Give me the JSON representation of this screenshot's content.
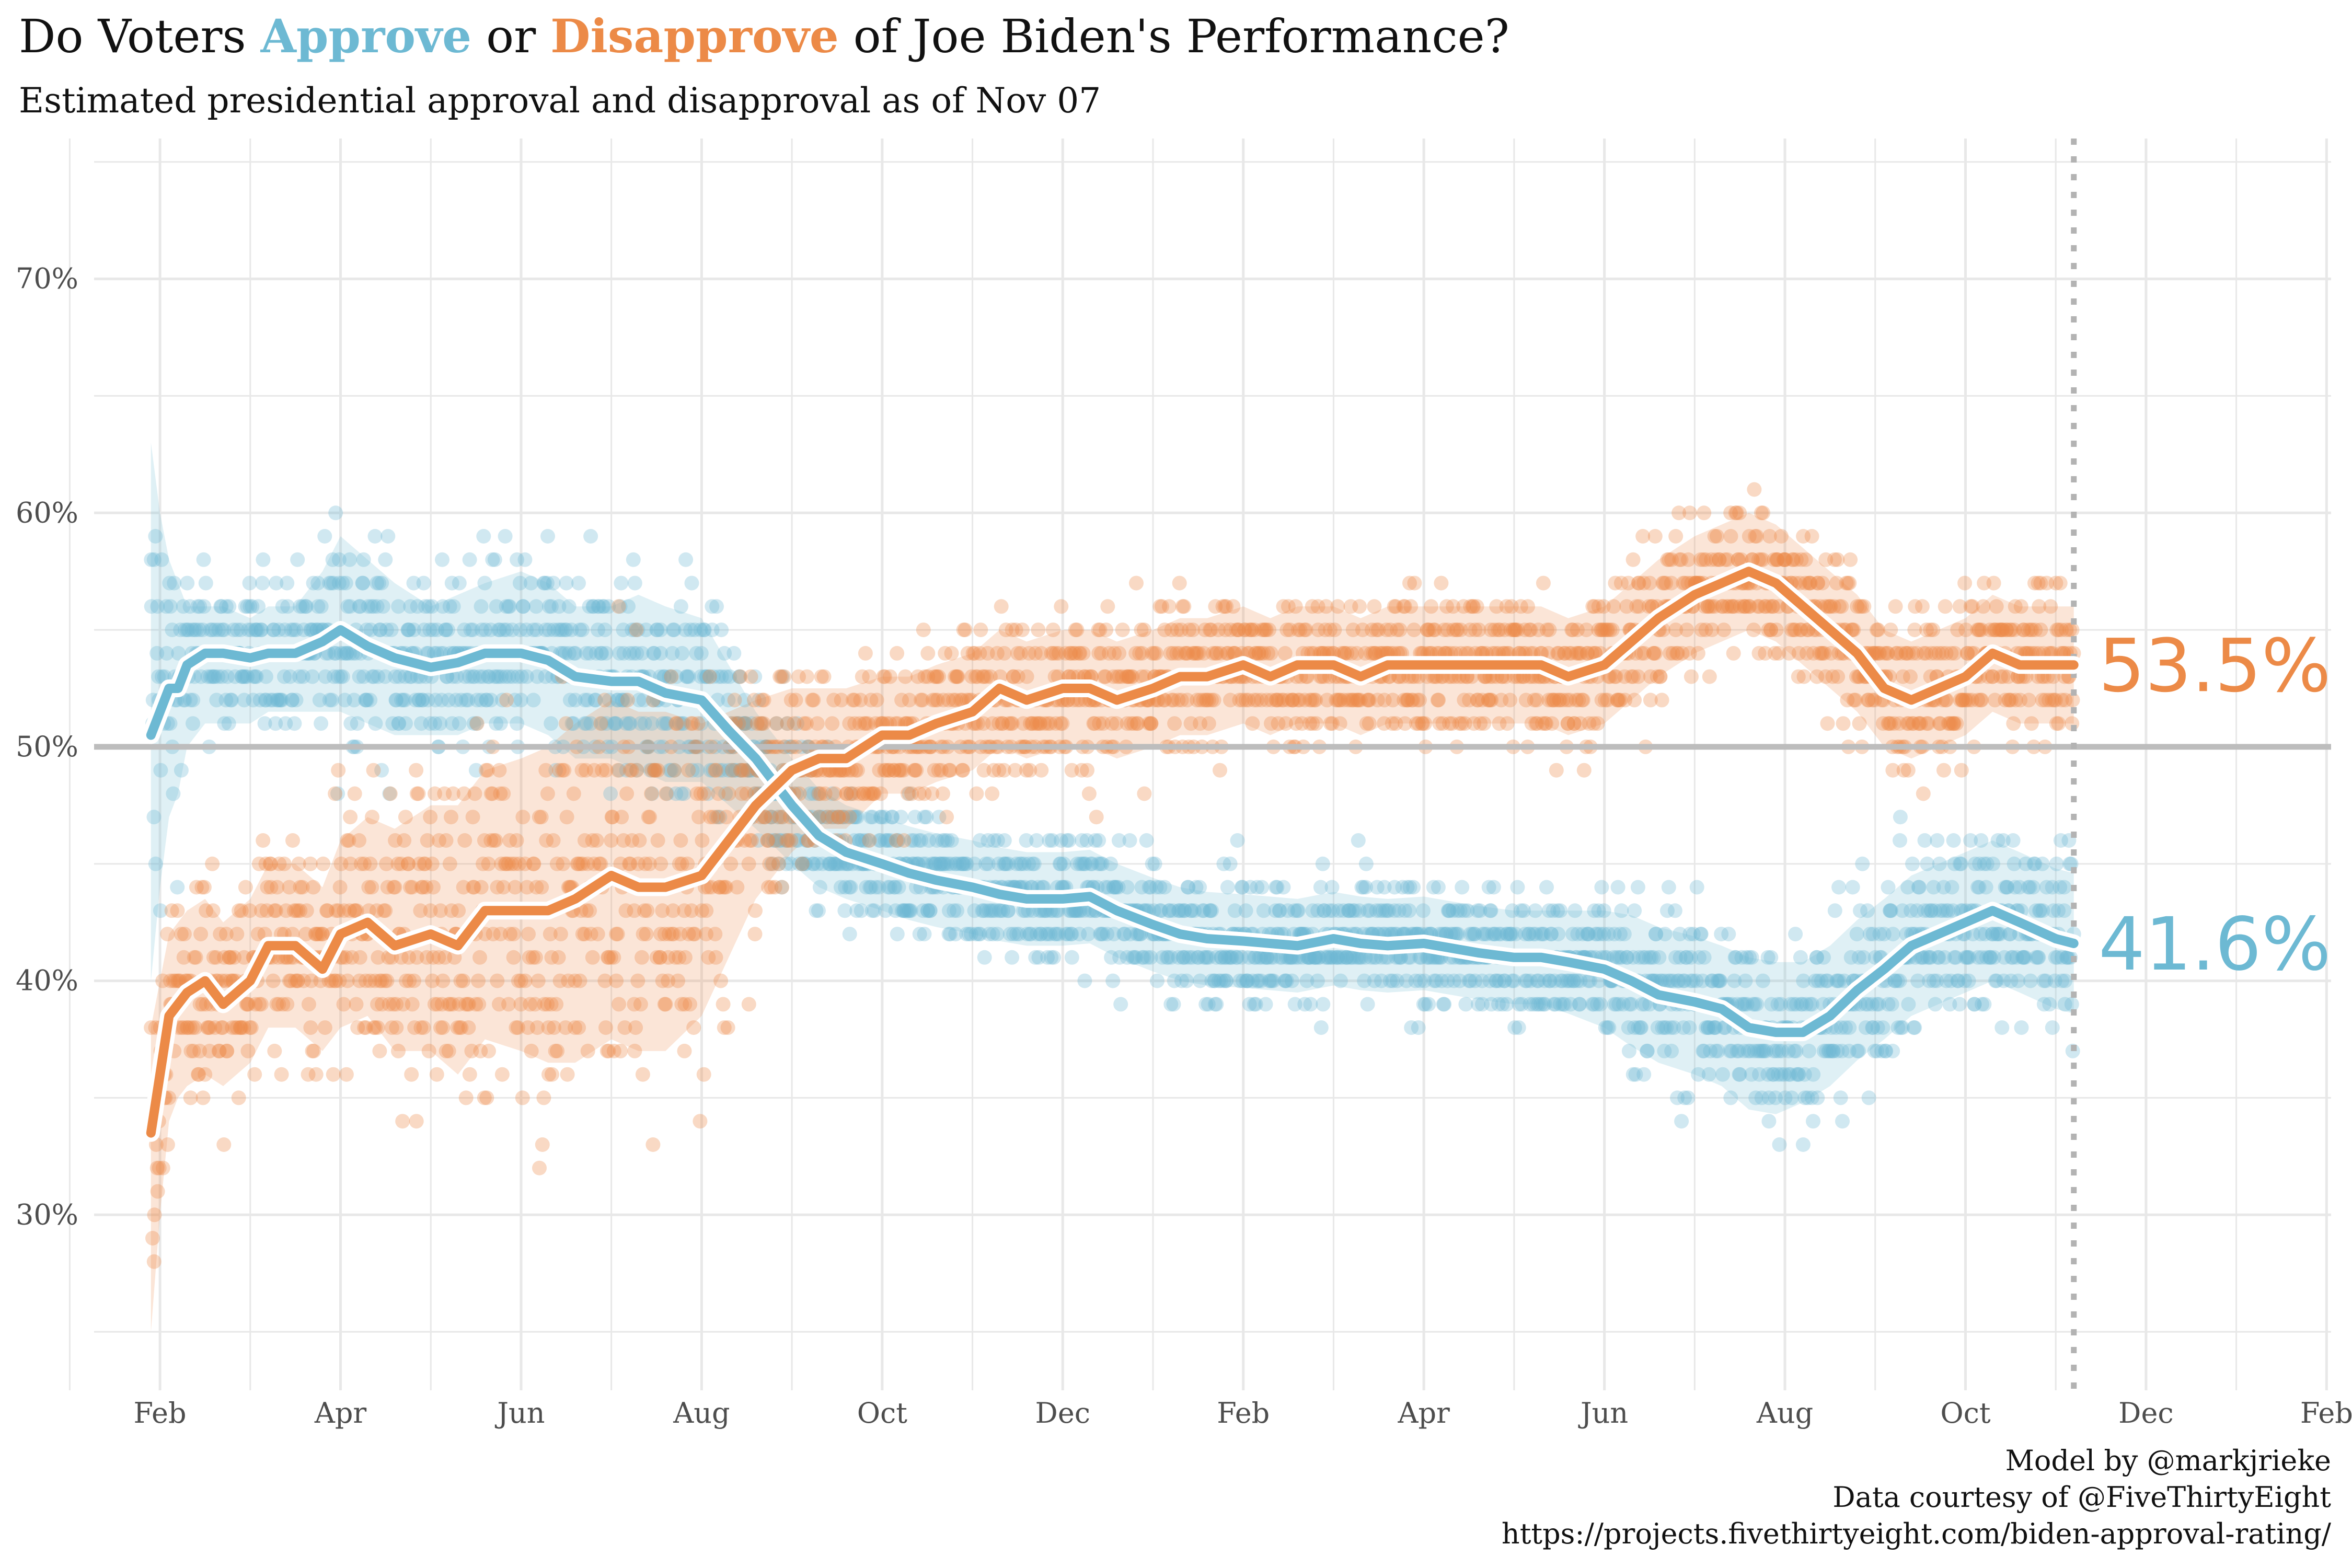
{
  "title": {
    "prefix": "Do Voters ",
    "approve_word": "Approve",
    "middle": " or ",
    "disapprove_word": "Disapprove",
    "suffix": " of Joe Biden's Performance?"
  },
  "subtitle": "Estimated presidential approval and disapproval as of Nov 07",
  "caption": [
    "Model by @markjrieke",
    "Data courtesy of @FiveThirtyEight",
    "https://projects.fivethirtyeight.com/biden-approval-rating/"
  ],
  "colors": {
    "approve": "#6db9d3",
    "disapprove": "#ec8a47",
    "reference": "#bdbdbd",
    "grid": "#e8e8e8"
  },
  "chart_data": {
    "type": "line",
    "x_unit": "months since Jan 2021",
    "xlim": [
      0.27,
      25.05
    ],
    "ylim": [
      22.5,
      76
    ],
    "x_ticks": [
      {
        "x": 1,
        "label": "Feb"
      },
      {
        "x": 3,
        "label": "Apr"
      },
      {
        "x": 5,
        "label": "Jun"
      },
      {
        "x": 7,
        "label": "Aug"
      },
      {
        "x": 9,
        "label": "Oct"
      },
      {
        "x": 11,
        "label": "Dec"
      },
      {
        "x": 13,
        "label": "Feb"
      },
      {
        "x": 15,
        "label": "Apr"
      },
      {
        "x": 17,
        "label": "Jun"
      },
      {
        "x": 19,
        "label": "Aug"
      },
      {
        "x": 21,
        "label": "Oct"
      },
      {
        "x": 23,
        "label": "Dec"
      },
      {
        "x": 25,
        "label": "Feb"
      }
    ],
    "y_ticks": [
      {
        "y": 30,
        "label": "30%"
      },
      {
        "y": 40,
        "label": "40%"
      },
      {
        "y": 50,
        "label": "50%"
      },
      {
        "y": 60,
        "label": "60%"
      },
      {
        "y": 70,
        "label": "70%"
      }
    ],
    "reference_line": 50,
    "current_date_x": 22.2,
    "series": [
      {
        "name": "Approve",
        "end_label": "41.6%",
        "x": [
          0.9,
          1.0,
          1.1,
          1.2,
          1.3,
          1.5,
          1.7,
          2.0,
          2.2,
          2.5,
          2.8,
          3.0,
          3.3,
          3.6,
          4.0,
          4.3,
          4.6,
          5.0,
          5.3,
          5.6,
          6.0,
          6.3,
          6.6,
          7.0,
          7.3,
          7.6,
          8.0,
          8.3,
          8.6,
          9.0,
          9.3,
          9.6,
          10.0,
          10.3,
          10.6,
          11.0,
          11.3,
          11.6,
          12.0,
          12.3,
          12.6,
          13.0,
          13.3,
          13.6,
          14.0,
          14.3,
          14.6,
          15.0,
          15.3,
          15.6,
          16.0,
          16.3,
          16.6,
          17.0,
          17.3,
          17.6,
          18.0,
          18.3,
          18.6,
          18.9,
          19.2,
          19.5,
          19.8,
          20.1,
          20.4,
          20.7,
          21.0,
          21.3,
          21.6,
          22.0,
          22.2
        ],
        "values": [
          50.5,
          51.5,
          52.5,
          52.5,
          53.5,
          54.0,
          54.0,
          53.8,
          54.0,
          54.0,
          54.5,
          55.0,
          54.3,
          53.8,
          53.4,
          53.6,
          54.0,
          54.0,
          53.7,
          53.0,
          52.8,
          52.8,
          52.3,
          52.0,
          50.7,
          49.5,
          47.5,
          46.2,
          45.5,
          45.0,
          44.6,
          44.3,
          44.0,
          43.7,
          43.5,
          43.5,
          43.6,
          43.0,
          42.4,
          42.0,
          41.8,
          41.7,
          41.6,
          41.5,
          41.8,
          41.6,
          41.5,
          41.6,
          41.4,
          41.2,
          41.0,
          41.0,
          40.8,
          40.5,
          40.0,
          39.4,
          39.1,
          38.8,
          38.0,
          37.8,
          37.8,
          38.5,
          39.6,
          40.5,
          41.5,
          42.0,
          42.5,
          43.0,
          42.5,
          41.8,
          41.6
        ],
        "band_upper": [
          63.0,
          60.0,
          58.0,
          57.0,
          56.0,
          56.0,
          56.0,
          55.5,
          56.0,
          56.0,
          57.5,
          59.0,
          58.0,
          57.0,
          56.0,
          56.5,
          57.0,
          57.5,
          57.0,
          56.0,
          56.0,
          56.5,
          56.0,
          55.5,
          53.5,
          51.5,
          49.5,
          48.2,
          47.5,
          47.0,
          46.6,
          46.3,
          46.0,
          45.7,
          45.5,
          45.5,
          45.6,
          45.0,
          44.4,
          44.0,
          43.8,
          43.7,
          43.6,
          43.5,
          43.8,
          43.6,
          43.5,
          43.6,
          43.4,
          43.2,
          43.0,
          43.0,
          43.0,
          43.0,
          42.8,
          42.3,
          41.9,
          41.5,
          41.0,
          40.8,
          40.8,
          41.5,
          42.6,
          43.5,
          44.5,
          45.0,
          45.5,
          46.0,
          45.5,
          44.8,
          44.6
        ],
        "band_lower": [
          40.0,
          44.0,
          47.0,
          48.0,
          50.0,
          51.0,
          51.0,
          51.0,
          51.5,
          51.5,
          51.5,
          51.5,
          51.0,
          50.5,
          50.5,
          50.5,
          51.0,
          51.0,
          50.5,
          49.5,
          49.5,
          49.0,
          48.5,
          48.5,
          47.5,
          46.5,
          45.0,
          44.0,
          43.5,
          43.0,
          42.6,
          42.3,
          42.0,
          41.7,
          41.5,
          41.5,
          41.6,
          41.0,
          40.4,
          40.0,
          39.8,
          39.7,
          39.6,
          39.5,
          39.8,
          39.6,
          39.5,
          39.6,
          39.4,
          39.2,
          39.0,
          39.0,
          38.6,
          38.0,
          37.2,
          36.5,
          36.0,
          35.5,
          34.5,
          34.3,
          34.8,
          35.5,
          36.6,
          37.5,
          38.5,
          39.0,
          39.5,
          40.0,
          39.5,
          38.8,
          38.6
        ]
      },
      {
        "name": "Disapprove",
        "end_label": "53.5%",
        "x": [
          0.9,
          1.0,
          1.1,
          1.2,
          1.3,
          1.5,
          1.7,
          2.0,
          2.2,
          2.5,
          2.8,
          3.0,
          3.3,
          3.6,
          4.0,
          4.3,
          4.6,
          5.0,
          5.3,
          5.6,
          6.0,
          6.3,
          6.6,
          7.0,
          7.3,
          7.6,
          8.0,
          8.3,
          8.6,
          9.0,
          9.3,
          9.6,
          10.0,
          10.3,
          10.6,
          11.0,
          11.3,
          11.6,
          12.0,
          12.3,
          12.6,
          13.0,
          13.3,
          13.6,
          14.0,
          14.3,
          14.6,
          15.0,
          15.3,
          15.6,
          16.0,
          16.3,
          16.6,
          17.0,
          17.3,
          17.6,
          18.0,
          18.3,
          18.6,
          18.9,
          19.2,
          19.5,
          19.8,
          20.1,
          20.4,
          20.7,
          21.0,
          21.3,
          21.6,
          22.0,
          22.2
        ],
        "values": [
          33.5,
          36.0,
          38.5,
          39.0,
          39.5,
          40.0,
          39.0,
          40.0,
          41.5,
          41.5,
          40.5,
          42.0,
          42.5,
          41.5,
          42.0,
          41.5,
          43.0,
          43.0,
          43.0,
          43.5,
          44.5,
          44.0,
          44.0,
          44.5,
          46.0,
          47.5,
          49.0,
          49.5,
          49.5,
          50.5,
          50.5,
          51.0,
          51.5,
          52.5,
          52.0,
          52.5,
          52.5,
          52.0,
          52.5,
          53.0,
          53.0,
          53.5,
          53.0,
          53.5,
          53.5,
          53.0,
          53.5,
          53.5,
          53.5,
          53.5,
          53.5,
          53.5,
          53.0,
          53.5,
          54.5,
          55.5,
          56.5,
          57.0,
          57.5,
          57.0,
          56.0,
          55.0,
          54.0,
          52.5,
          52.0,
          52.5,
          53.0,
          54.0,
          53.5,
          53.5,
          53.5
        ],
        "band_upper": [
          38.0,
          40.0,
          42.0,
          42.5,
          43.0,
          43.5,
          42.5,
          43.5,
          45.0,
          45.0,
          44.0,
          46.0,
          47.0,
          46.5,
          47.5,
          47.5,
          49.0,
          49.5,
          50.0,
          51.0,
          52.0,
          51.5,
          51.5,
          51.0,
          51.5,
          52.0,
          52.5,
          52.5,
          52.5,
          53.0,
          53.0,
          53.5,
          54.0,
          55.0,
          54.5,
          55.0,
          55.0,
          54.5,
          55.0,
          55.5,
          55.5,
          56.0,
          55.5,
          56.0,
          56.0,
          55.5,
          56.0,
          56.0,
          56.0,
          56.0,
          56.0,
          56.0,
          55.5,
          56.0,
          57.0,
          58.0,
          59.0,
          59.5,
          60.0,
          59.5,
          58.5,
          57.5,
          56.5,
          55.0,
          54.5,
          55.0,
          55.5,
          56.5,
          56.0,
          56.0,
          56.0
        ],
        "band_lower": [
          25.0,
          30.0,
          34.0,
          35.0,
          35.5,
          36.0,
          35.5,
          36.5,
          38.0,
          38.0,
          37.0,
          38.0,
          38.5,
          37.0,
          37.0,
          36.0,
          37.5,
          37.0,
          36.5,
          36.5,
          37.5,
          37.0,
          37.0,
          38.5,
          41.0,
          43.5,
          45.5,
          46.5,
          46.5,
          48.0,
          48.0,
          48.5,
          49.0,
          50.0,
          49.5,
          50.0,
          50.0,
          49.5,
          50.0,
          50.5,
          50.5,
          51.0,
          50.5,
          51.0,
          51.0,
          50.5,
          51.0,
          51.0,
          51.0,
          51.0,
          51.0,
          51.0,
          50.5,
          51.0,
          52.0,
          53.0,
          54.0,
          54.5,
          55.0,
          54.5,
          53.5,
          52.5,
          51.5,
          50.0,
          49.5,
          50.0,
          50.5,
          51.5,
          51.0,
          51.0,
          51.0
        ]
      }
    ]
  }
}
